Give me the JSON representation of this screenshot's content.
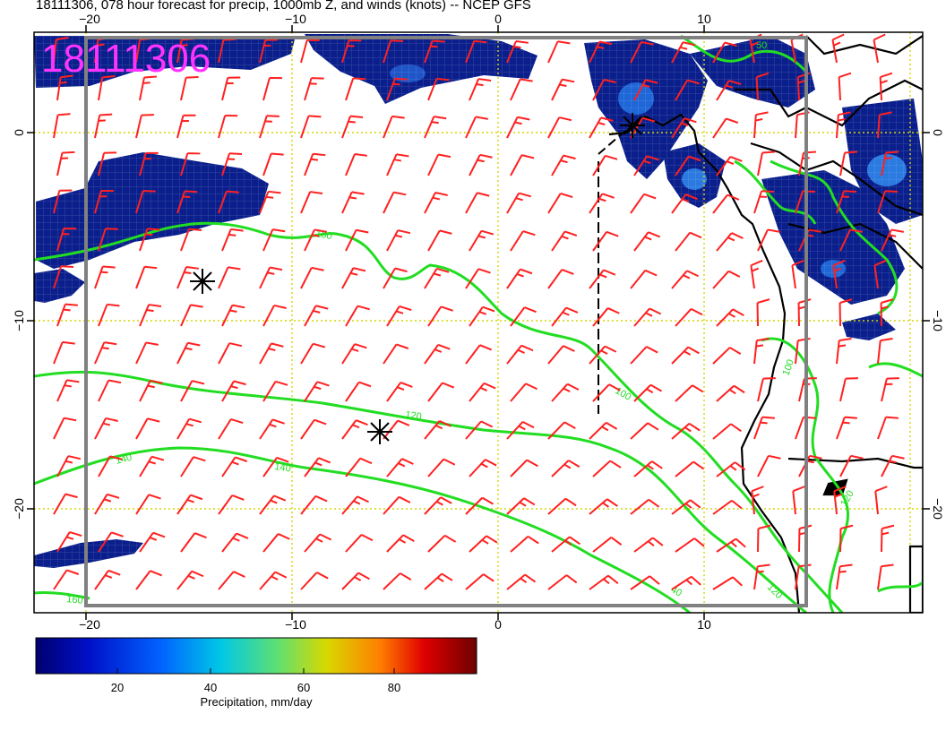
{
  "title": "18111306, 078 hour forecast for precip, 1000mb Z, and winds (knots) -- NCEP GFS",
  "stamp": "18111306",
  "axes": {
    "lon_ticks": [
      "−20",
      "−10",
      "0",
      "10"
    ],
    "lat_ticks": [
      "0",
      "−10",
      "−20"
    ]
  },
  "contour_labels": [
    "100",
    "100",
    "120",
    "140",
    "140",
    "160",
    "40",
    "120",
    "120",
    "100",
    "50"
  ],
  "colorbar": {
    "title": "Precipitation, mm/day",
    "ticks": [
      "20",
      "40",
      "60",
      "80"
    ],
    "colors": [
      "#00006e",
      "#0010c8",
      "#0060ff",
      "#00c8e6",
      "#60e070",
      "#d8d800",
      "#ff8000",
      "#e00000",
      "#6e0000"
    ]
  },
  "colors": {
    "wind_barb": "#ff2020",
    "contour": "#22dd22",
    "precip": "#0a1f8c",
    "grid": "#d6d600",
    "frame": "#808080"
  },
  "markers": [
    "asterisk",
    "asterisk",
    "asterisk"
  ]
}
